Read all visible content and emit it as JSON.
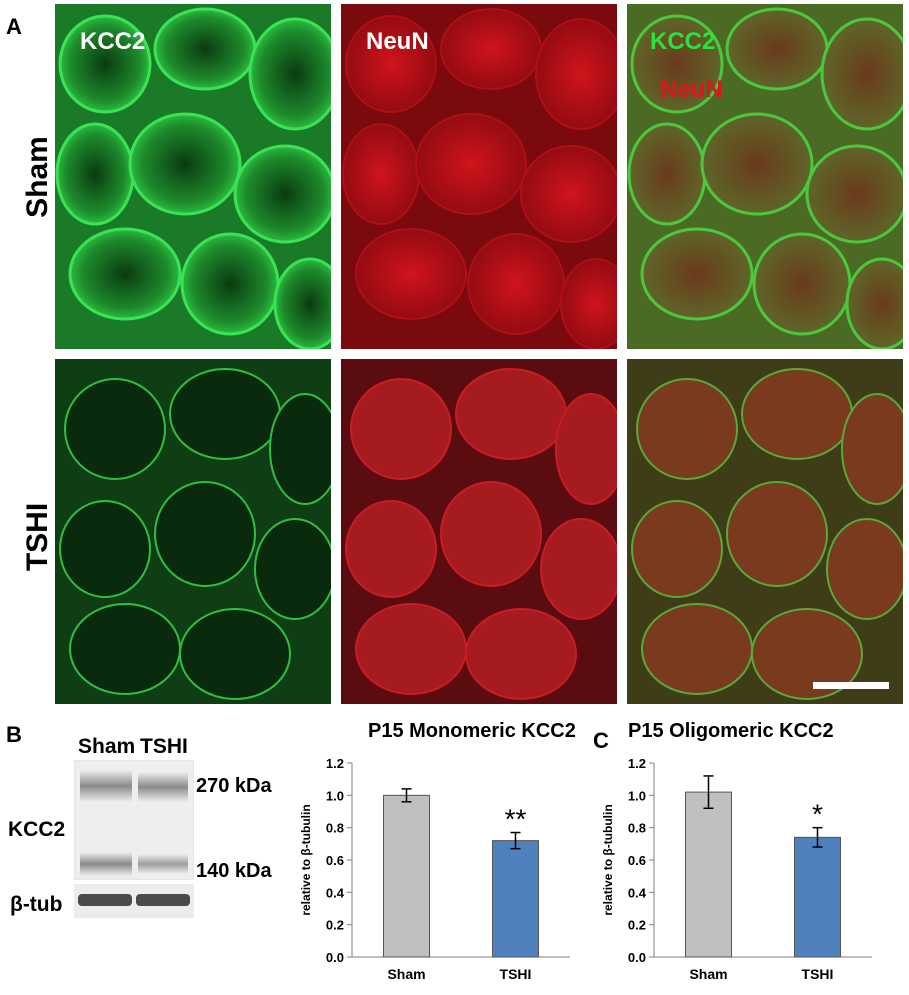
{
  "figure": {
    "panel_labels": {
      "a": "A",
      "b": "B",
      "c": "C"
    },
    "rows": [
      "Sham",
      "TSHI"
    ],
    "channels": {
      "kcc2": "KCC2",
      "neun": "NeuN"
    },
    "colors": {
      "green": "#22c43a",
      "red": "#d1121a",
      "bar_sham": "#c0c0c0",
      "bar_tshi": "#4f81bd"
    }
  },
  "blot": {
    "lanes": [
      "Sham",
      "TSHI"
    ],
    "protein_label": "KCC2",
    "loading_label": "β-tub",
    "marker_high": "270 kDa",
    "marker_low": "140 kDa"
  },
  "chart_data": [
    {
      "type": "bar",
      "title": "P15 Monomeric KCC2",
      "categories": [
        "Sham",
        "TSHI"
      ],
      "values": [
        1.0,
        0.72
      ],
      "errors": [
        0.04,
        0.05
      ],
      "significance": [
        "",
        "**"
      ],
      "xlabel": "",
      "ylabel": "relative to β-tubulin",
      "ylim": [
        0,
        1.2
      ],
      "yticks": [
        "0.0",
        "0.2",
        "0.4",
        "0.6",
        "0.8",
        "1.0",
        "1.2"
      ],
      "grid": false
    },
    {
      "type": "bar",
      "title": "P15 Oligomeric KCC2",
      "categories": [
        "Sham",
        "TSHI"
      ],
      "values": [
        1.02,
        0.74
      ],
      "errors": [
        0.1,
        0.06
      ],
      "significance": [
        "",
        "*"
      ],
      "xlabel": "",
      "ylabel": "relative to β-tubulin",
      "ylim": [
        0,
        1.2
      ],
      "yticks": [
        "0.0",
        "0.2",
        "0.4",
        "0.6",
        "0.8",
        "1.0",
        "1.2"
      ],
      "grid": false
    }
  ]
}
